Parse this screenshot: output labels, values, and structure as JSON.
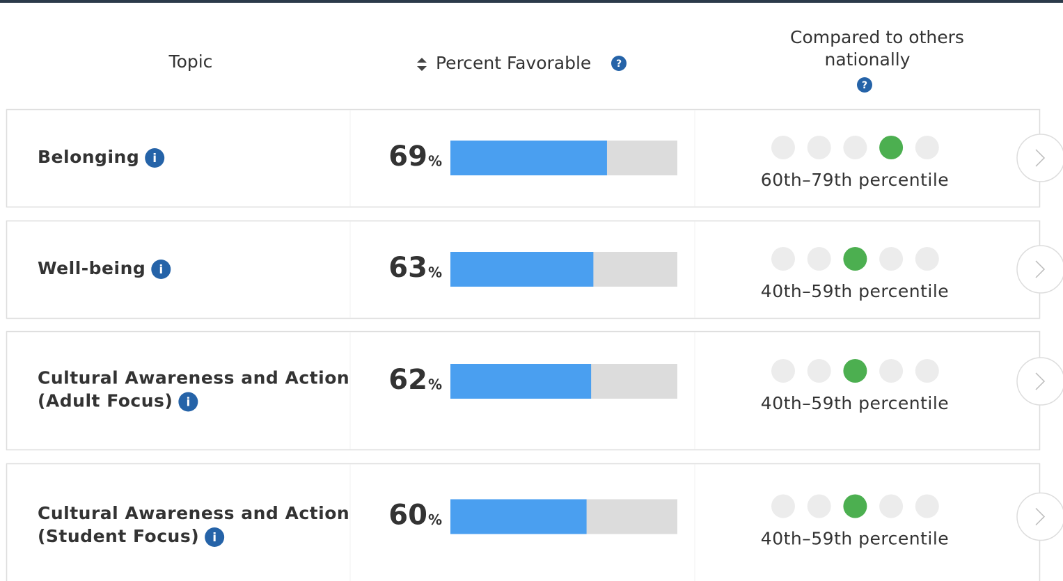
{
  "header": {
    "topic": "Topic",
    "percent_favorable": "Percent Favorable",
    "compared": [
      "Compared to others",
      "nationally"
    ],
    "help_icon": "?"
  },
  "info_icon": "i",
  "percent_unit": "%",
  "dot_count": 5,
  "rows": [
    {
      "topic": [
        "Belonging"
      ],
      "percent": 69,
      "dot": 4,
      "percentile": "60th–79th percentile"
    },
    {
      "topic": [
        "Well-being"
      ],
      "percent": 63,
      "dot": 3,
      "percentile": "40th–59th percentile"
    },
    {
      "topic": [
        "Cultural Awareness and Action",
        "(Adult Focus)"
      ],
      "percent": 62,
      "dot": 3,
      "percentile": "40th–59th percentile"
    },
    {
      "topic": [
        "Cultural Awareness and Action",
        "(Student Focus)"
      ],
      "percent": 60,
      "dot": 3,
      "percentile": "40th–59th percentile"
    }
  ]
}
